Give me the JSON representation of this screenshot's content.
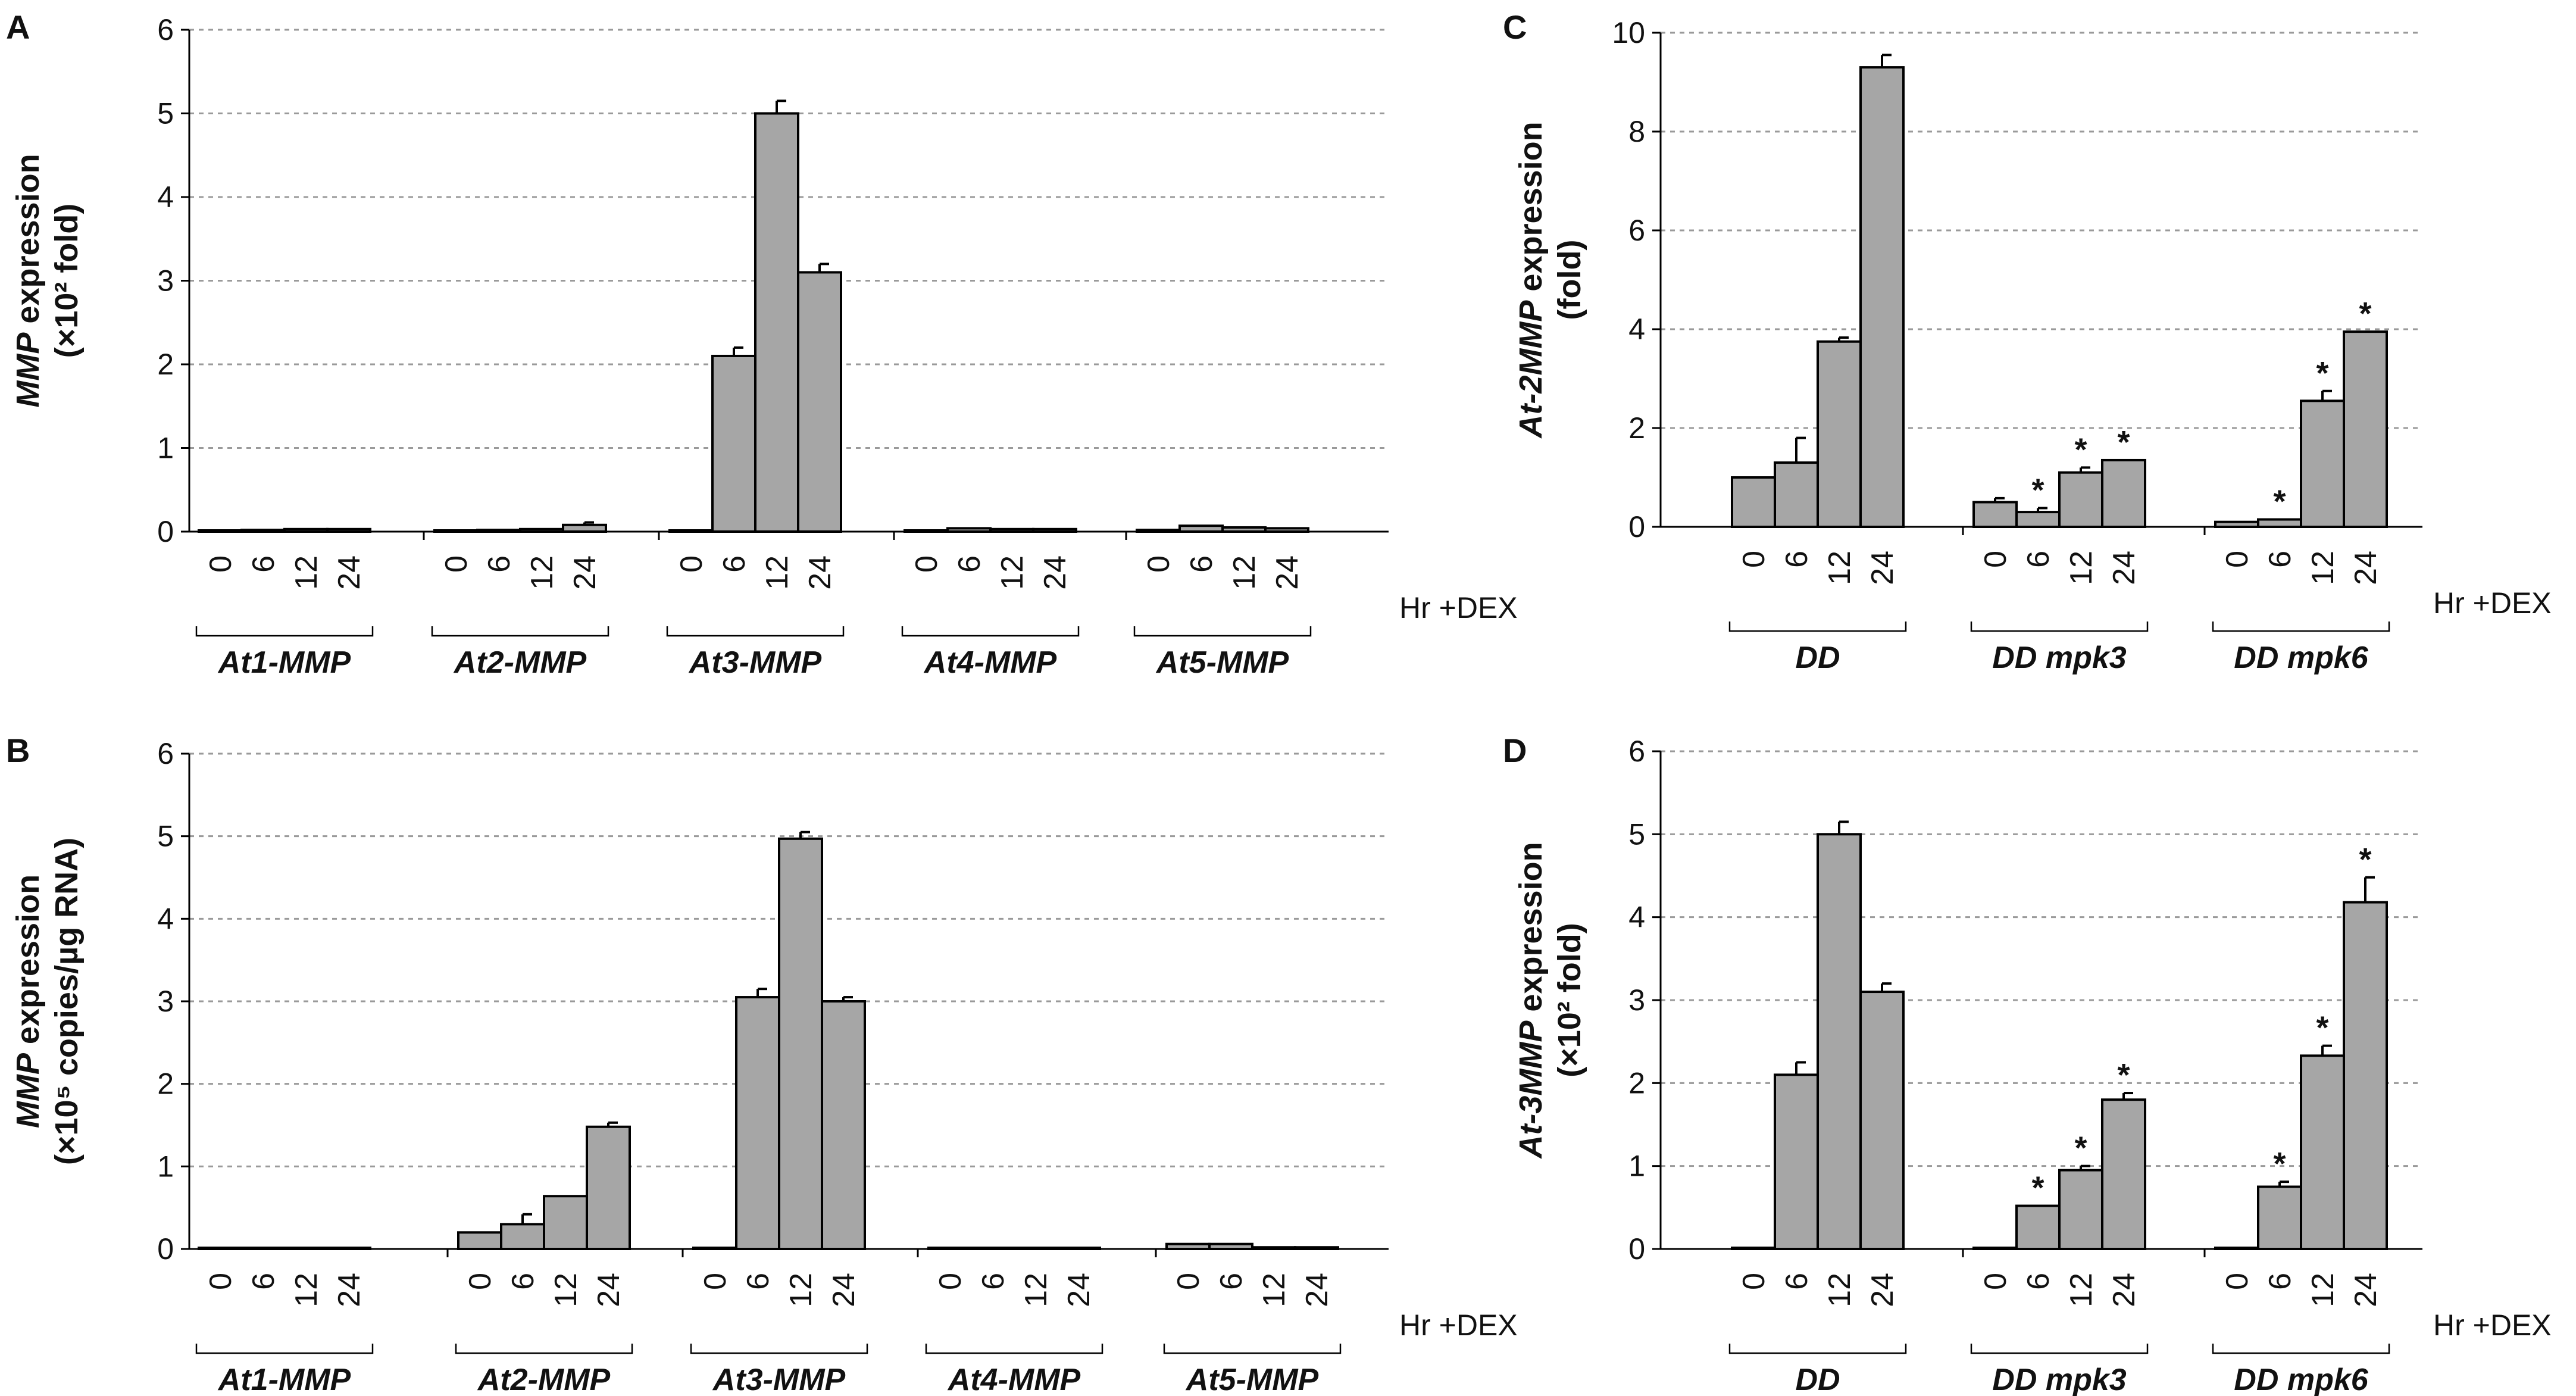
{
  "chart_data": [
    {
      "panel": "A",
      "type": "bar",
      "ylabel_italic": "MMP",
      "ylabel_rest": " expression",
      "ylabel_line2": "(×10² fold)",
      "ylim": [
        0,
        6
      ],
      "yticks": [
        "0",
        "1",
        "2",
        "3",
        "4",
        "5",
        "6"
      ],
      "x_unit_label": "Hr +DEX",
      "time_points": [
        "0",
        "6",
        "12",
        "24"
      ],
      "groups": [
        {
          "name": "At1-MMP",
          "values": [
            0.01,
            0.02,
            0.03,
            0.03
          ],
          "errors": [
            0,
            0,
            0,
            0
          ],
          "stars": [
            false,
            false,
            false,
            false
          ]
        },
        {
          "name": "At2-MMP",
          "values": [
            0.01,
            0.02,
            0.03,
            0.08
          ],
          "errors": [
            0,
            0,
            0,
            0.03
          ],
          "stars": [
            false,
            false,
            false,
            false
          ]
        },
        {
          "name": "At3-MMP",
          "values": [
            0.01,
            2.1,
            5.0,
            3.1
          ],
          "errors": [
            0,
            0.1,
            0.15,
            0.1
          ],
          "stars": [
            false,
            false,
            false,
            false
          ]
        },
        {
          "name": "At4-MMP",
          "values": [
            0.01,
            0.04,
            0.03,
            0.03
          ],
          "errors": [
            0,
            0,
            0,
            0
          ],
          "stars": [
            false,
            false,
            false,
            false
          ]
        },
        {
          "name": "At5-MMP",
          "values": [
            0.02,
            0.07,
            0.05,
            0.04
          ],
          "errors": [
            0,
            0,
            0,
            0
          ],
          "stars": [
            false,
            false,
            false,
            false
          ]
        }
      ]
    },
    {
      "panel": "B",
      "type": "bar",
      "ylabel_italic": "MMP",
      "ylabel_rest": " expression",
      "ylabel_line2": "(×10⁵ copies/µg RNA)",
      "ylim": [
        0,
        6
      ],
      "yticks": [
        "0",
        "1",
        "2",
        "3",
        "4",
        "5",
        "6"
      ],
      "x_unit_label": "Hr +DEX",
      "time_points": [
        "0",
        "6",
        "12",
        "24"
      ],
      "groups": [
        {
          "name": "At1-MMP",
          "values": [
            0.01,
            0.01,
            0.01,
            0.01
          ],
          "errors": [
            0,
            0,
            0,
            0
          ],
          "stars": [
            false,
            false,
            false,
            false
          ]
        },
        {
          "name": "At2-MMP",
          "values": [
            0.2,
            0.3,
            0.64,
            1.48
          ],
          "errors": [
            0,
            0.12,
            0,
            0.05
          ],
          "stars": [
            false,
            false,
            false,
            false
          ]
        },
        {
          "name": "At3-MMP",
          "values": [
            0.01,
            3.05,
            4.97,
            3.0
          ],
          "errors": [
            0,
            0.1,
            0.08,
            0.05
          ],
          "stars": [
            false,
            false,
            false,
            false
          ]
        },
        {
          "name": "At4-MMP",
          "values": [
            0.01,
            0.01,
            0.01,
            0.01
          ],
          "errors": [
            0,
            0,
            0,
            0
          ],
          "stars": [
            false,
            false,
            false,
            false
          ]
        },
        {
          "name": "At5-MMP",
          "values": [
            0.06,
            0.06,
            0.02,
            0.02
          ],
          "errors": [
            0,
            0,
            0,
            0
          ],
          "stars": [
            false,
            false,
            false,
            false
          ]
        }
      ]
    },
    {
      "panel": "C",
      "type": "bar",
      "ylabel_italic": "At-2MMP",
      "ylabel_rest": " expression",
      "ylabel_line2": "(fold)",
      "ylim": [
        0,
        10
      ],
      "yticks": [
        "0",
        "2",
        "4",
        "6",
        "8",
        "10"
      ],
      "x_unit_label": "Hr +DEX",
      "time_points": [
        "0",
        "6",
        "12",
        "24"
      ],
      "groups": [
        {
          "name": "DD",
          "values": [
            1.0,
            1.3,
            3.75,
            9.3
          ],
          "errors": [
            0,
            0.5,
            0.08,
            0.25
          ],
          "stars": [
            false,
            false,
            false,
            false
          ]
        },
        {
          "name": "DD mpk3",
          "values": [
            0.5,
            0.3,
            1.1,
            1.35
          ],
          "errors": [
            0.08,
            0.08,
            0.1,
            0
          ],
          "stars": [
            false,
            true,
            true,
            true
          ]
        },
        {
          "name": "DD mpk6",
          "values": [
            0.1,
            0.15,
            2.55,
            3.95
          ],
          "errors": [
            0,
            0,
            0.2,
            0
          ],
          "stars": [
            false,
            true,
            true,
            true
          ]
        }
      ]
    },
    {
      "panel": "D",
      "type": "bar",
      "ylabel_italic": "At-3MMP",
      "ylabel_rest": " expression",
      "ylabel_line2": "(×10² fold)",
      "ylim": [
        0,
        6
      ],
      "yticks": [
        "0",
        "1",
        "2",
        "3",
        "4",
        "5",
        "6"
      ],
      "x_unit_label": "Hr +DEX",
      "time_points": [
        "0",
        "6",
        "12",
        "24"
      ],
      "groups": [
        {
          "name": "DD",
          "values": [
            0.01,
            2.1,
            5.0,
            3.1
          ],
          "errors": [
            0,
            0.15,
            0.15,
            0.1
          ],
          "stars": [
            false,
            false,
            false,
            false
          ]
        },
        {
          "name": "DD mpk3",
          "values": [
            0.01,
            0.52,
            0.95,
            1.8
          ],
          "errors": [
            0,
            0,
            0.05,
            0.08
          ],
          "stars": [
            false,
            true,
            true,
            true
          ]
        },
        {
          "name": "DD mpk6",
          "values": [
            0.01,
            0.75,
            2.33,
            4.18
          ],
          "errors": [
            0,
            0.06,
            0.12,
            0.3
          ],
          "stars": [
            false,
            true,
            true,
            true
          ]
        }
      ]
    }
  ],
  "style": {
    "bar_fill": "#a6a6a6",
    "bar_stroke": "#000000",
    "grid_color": "#9a9a9a"
  }
}
